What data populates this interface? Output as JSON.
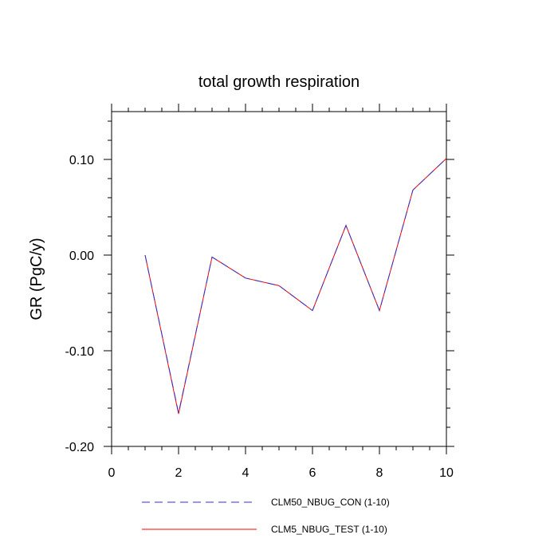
{
  "chart_data": {
    "type": "line",
    "title": "total growth respiration",
    "xlabel": "",
    "ylabel": "GR  (PgC/y)",
    "xlim": [
      0,
      10
    ],
    "ylim": [
      -0.2,
      0.15
    ],
    "xticks": [
      0,
      2,
      4,
      6,
      8,
      10
    ],
    "xtick_labels": [
      "0",
      "2",
      "4",
      "6",
      "8",
      "10"
    ],
    "yticks": [
      -0.2,
      -0.1,
      0.0,
      0.1
    ],
    "ytick_labels": [
      "-0.20",
      "-0.10",
      "0.00",
      "0.10"
    ],
    "grid": false,
    "legend_position": "bottom",
    "x": [
      1,
      2,
      3,
      4,
      5,
      6,
      7,
      8,
      9,
      10
    ],
    "series": [
      {
        "name": "CLM50_NBUG_CON (1-10)",
        "color": "#3333cc",
        "style": "dashed",
        "values": [
          0.0,
          -0.165,
          -0.002,
          -0.024,
          -0.032,
          -0.058,
          0.031,
          -0.058,
          0.068,
          0.101
        ]
      },
      {
        "name": "CLM5_NBUG_TEST (1-10)",
        "color": "#ff0000",
        "style": "solid",
        "values": [
          0.0,
          -0.166,
          -0.002,
          -0.024,
          -0.032,
          -0.058,
          0.031,
          -0.058,
          0.068,
          0.101
        ]
      }
    ]
  }
}
